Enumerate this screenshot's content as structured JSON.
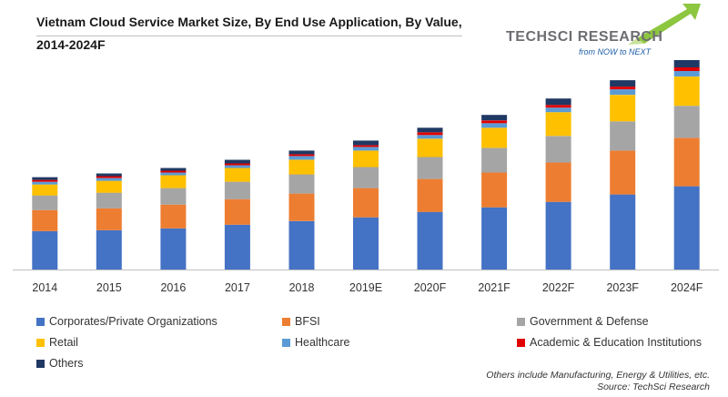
{
  "header": {
    "title_line1": "Vietnam Cloud Service Market Size, By End Use Application, By Value,",
    "title_line2": "2014-2024F"
  },
  "logo": {
    "brand_part1": "TechSci",
    "brand_part2": "Research",
    "tagline": "from NOW to NEXT"
  },
  "footnote": {
    "line1": "Others include Manufacturing, Energy & Utilities, etc.",
    "line2": "Source: TechSci Research"
  },
  "chart_data": {
    "type": "bar",
    "stacked": true,
    "categories": [
      "2014",
      "2015",
      "2016",
      "2017",
      "2018",
      "2019E",
      "2020F",
      "2021F",
      "2022F",
      "2023F",
      "2024F"
    ],
    "ylim": [
      0,
      225
    ],
    "grid": false,
    "legend_position": "bottom",
    "series": [
      {
        "name": "Corporates/Private Organizations",
        "color": "#4472c4",
        "values": [
          42,
          43,
          45,
          49,
          53,
          57,
          63,
          68,
          74,
          82,
          91
        ]
      },
      {
        "name": "BFSI",
        "color": "#ed7d31",
        "values": [
          23,
          24,
          26,
          28,
          30,
          32,
          36,
          38,
          43,
          48,
          53
        ]
      },
      {
        "name": "Government & Defense",
        "color": "#a5a5a5",
        "values": [
          16,
          17,
          18,
          19,
          21,
          23,
          24,
          27,
          29,
          32,
          35
        ]
      },
      {
        "name": "Retail",
        "color": "#ffc000",
        "values": [
          12,
          13,
          14,
          15,
          16,
          18,
          20,
          22,
          26,
          29,
          32
        ]
      },
      {
        "name": "Healthcare",
        "color": "#5b9bd5",
        "values": [
          3,
          3,
          3,
          3,
          4,
          4,
          4,
          5,
          5,
          6,
          6
        ]
      },
      {
        "name": "Academic & Education Institutions",
        "color": "#e00000",
        "values": [
          2,
          2,
          2,
          2,
          2,
          2,
          3,
          3,
          3,
          3,
          4
        ]
      },
      {
        "name": "Others",
        "color": "#203864",
        "values": [
          3,
          3,
          3,
          4,
          4,
          5,
          5,
          6,
          7,
          7,
          8
        ]
      }
    ]
  }
}
